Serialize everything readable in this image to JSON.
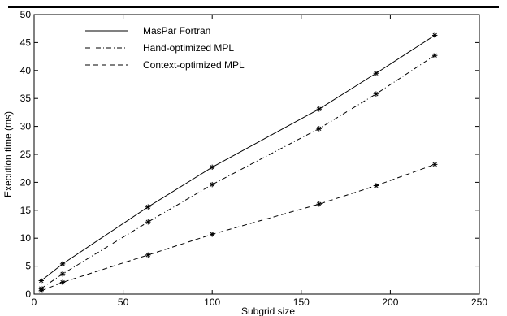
{
  "chart_data": {
    "type": "line",
    "title": "",
    "xlabel": "Subgrid size",
    "ylabel": "Execution time (ms)",
    "xlim": [
      0,
      250
    ],
    "ylim": [
      0,
      50
    ],
    "xticks": [
      0,
      50,
      100,
      150,
      200,
      250
    ],
    "yticks": [
      0,
      5,
      10,
      15,
      20,
      25,
      30,
      35,
      40,
      45,
      50
    ],
    "grid": false,
    "legend_position": "top-left",
    "marker": "asterisk",
    "series": [
      {
        "name": "MasPar Fortran",
        "line_style": "solid",
        "x": [
          4,
          16,
          64,
          100,
          160,
          192,
          225
        ],
        "y": [
          2.4,
          5.4,
          15.6,
          22.7,
          33.1,
          39.5,
          46.3
        ]
      },
      {
        "name": "Hand-optimized MPL",
        "line_style": "dash-dot",
        "x": [
          4,
          16,
          64,
          100,
          160,
          192,
          225
        ],
        "y": [
          1.0,
          3.6,
          12.9,
          19.6,
          29.6,
          35.8,
          42.7
        ]
      },
      {
        "name": "Context-optimized MPL",
        "line_style": "dashed",
        "x": [
          4,
          16,
          64,
          100,
          160,
          192,
          225
        ],
        "y": [
          0.6,
          2.1,
          7.0,
          10.7,
          16.1,
          19.4,
          23.2
        ]
      }
    ]
  }
}
